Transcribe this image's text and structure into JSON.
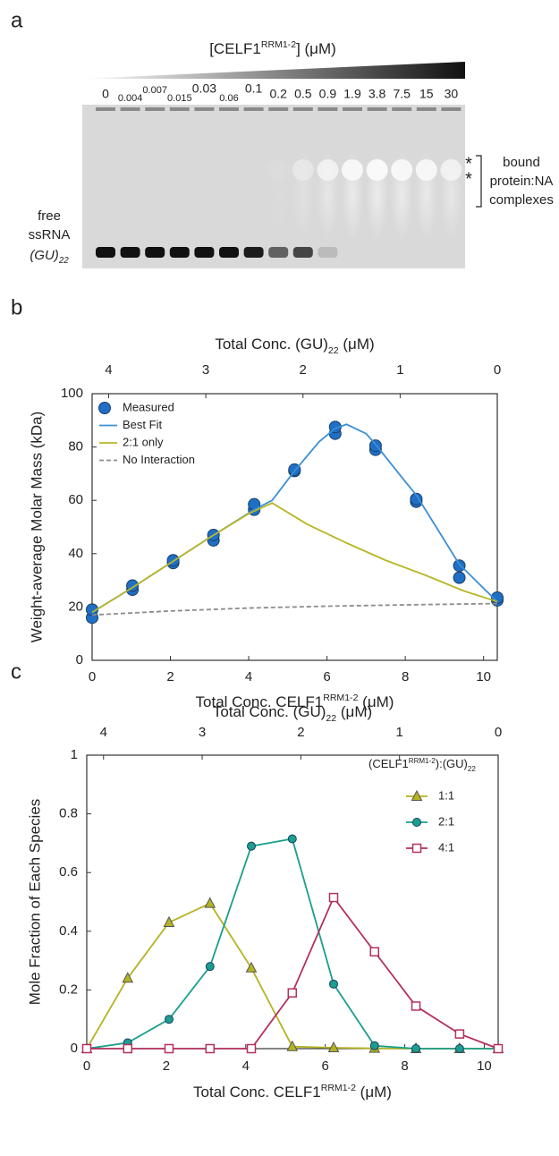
{
  "gel": {
    "panel": "a",
    "title": [
      "[CELF1",
      "RRM1-2",
      "] (μM)"
    ],
    "concentrations": [
      "0",
      "0.004",
      "0.007",
      "0.015",
      "0.03",
      "0.06",
      "0.1",
      "0.2",
      "0.5",
      "0.9",
      "1.9",
      "3.8",
      "7.5",
      "15",
      "30"
    ],
    "free_label": [
      "free",
      "ssRNA",
      "(GU)",
      "22"
    ],
    "band_marks": [
      "*",
      "*"
    ],
    "bound_label": [
      "bound",
      "protein:NA",
      "complexes"
    ]
  },
  "chart_data": [
    {
      "panel": "b",
      "type": "line",
      "x_label": [
        "Total Conc. CELF1",
        "RRM1-2",
        " (μM)"
      ],
      "x2_label": [
        "Total Conc. (GU)",
        "22",
        " (μM)"
      ],
      "y_label": "Weight-average Molar Mass (kDa)",
      "xlim": [
        0,
        10.35
      ],
      "xticks": [
        0,
        2,
        4,
        6,
        8,
        10
      ],
      "x2lim": [
        4.17,
        0
      ],
      "x2ticks": [
        4,
        3,
        2,
        1,
        0
      ],
      "ylim": [
        0,
        100
      ],
      "yticks": [
        0,
        20,
        40,
        60,
        80,
        100
      ],
      "legend": "upper left",
      "series": [
        {
          "name": "Measured",
          "mode": "markers",
          "marker": "circle",
          "color": "#1f6fc5",
          "x": [
            0,
            0,
            1.03,
            1.03,
            2.07,
            2.07,
            3.1,
            3.1,
            4.14,
            4.14,
            5.17,
            5.17,
            6.21,
            6.21,
            7.24,
            7.24,
            8.28,
            8.28,
            9.38,
            9.38,
            10.35,
            10.35
          ],
          "values": [
            16,
            19,
            26.5,
            28,
            36.5,
            37.5,
            45,
            47,
            56.5,
            58.5,
            71,
            71.5,
            85,
            87.5,
            79,
            80.5,
            59.5,
            60.5,
            31,
            35.5,
            22.5,
            23.5
          ]
        },
        {
          "name": "Best Fit",
          "mode": "lines",
          "color": "#3a8fd6",
          "x": [
            0,
            1,
            2,
            3,
            4.14,
            4.6,
            5.17,
            5.8,
            6.21,
            6.5,
            7,
            7.24,
            8,
            8.28,
            9,
            9.38,
            10,
            10.35
          ],
          "values": [
            18,
            27,
            36.5,
            46,
            56.5,
            60,
            71,
            82,
            87,
            88.5,
            85,
            81,
            67,
            62,
            45,
            36,
            27,
            22
          ]
        },
        {
          "name": "2:1 only",
          "mode": "lines",
          "color": "#b8b624",
          "x": [
            0,
            1,
            2,
            3,
            4,
            4.6,
            5.5,
            6.5,
            7.5,
            8.5,
            9.5,
            10.35
          ],
          "values": [
            18,
            27,
            36.5,
            46,
            55,
            59,
            51,
            44,
            37.5,
            32,
            26,
            22
          ]
        },
        {
          "name": "No Interaction",
          "mode": "lines",
          "dash": true,
          "color": "#8c8c8c",
          "x": [
            0,
            2,
            4,
            6,
            8,
            10.35
          ],
          "values": [
            17,
            18.5,
            19.6,
            20.3,
            20.8,
            21.3
          ]
        }
      ]
    },
    {
      "panel": "c",
      "type": "line",
      "x_label": [
        "Total Conc. CELF1",
        "RRM1-2",
        " (μM)"
      ],
      "x2_label": [
        "Total Conc. (GU)",
        "22",
        " (μM)"
      ],
      "y_label": "Mole Fraction of Each Species",
      "xlim": [
        0,
        10.35
      ],
      "xticks": [
        0,
        2,
        4,
        6,
        8,
        10
      ],
      "x2lim": [
        4.17,
        0
      ],
      "x2ticks": [
        4,
        3,
        2,
        1,
        0
      ],
      "ylim": [
        0,
        1
      ],
      "yticks": [
        0,
        0.2,
        0.4,
        0.6,
        0.8,
        1
      ],
      "legend": "upper right",
      "legend_title": [
        "(CELF1",
        "RRM1-2",
        "):(GU)",
        "22"
      ],
      "series": [
        {
          "name": "1:1",
          "mode": "lines+markers",
          "marker": "triangle",
          "color": "#b5b322",
          "x": [
            0,
            1.03,
            2.07,
            3.1,
            4.14,
            5.17,
            6.21,
            7.24,
            8.28,
            9.38,
            10.35
          ],
          "values": [
            0,
            0.24,
            0.43,
            0.495,
            0.275,
            0.007,
            0.003,
            0.001,
            0,
            0,
            0
          ]
        },
        {
          "name": "2:1",
          "mode": "lines+markers",
          "marker": "circle",
          "color": "#1b9e8c",
          "x": [
            0,
            1.03,
            2.07,
            3.1,
            4.14,
            5.17,
            6.21,
            7.24,
            8.28,
            9.38,
            10.35
          ],
          "values": [
            0,
            0.02,
            0.1,
            0.28,
            0.69,
            0.715,
            0.22,
            0.01,
            0,
            0,
            0
          ]
        },
        {
          "name": "4:1",
          "mode": "lines+markers",
          "marker": "square-open",
          "color": "#b3305f",
          "x": [
            0,
            1.03,
            2.07,
            3.1,
            4.14,
            5.17,
            6.21,
            7.24,
            8.28,
            9.38,
            10.35
          ],
          "values": [
            0,
            0,
            0,
            0,
            0,
            0.19,
            0.515,
            0.33,
            0.145,
            0.05,
            0
          ]
        }
      ]
    }
  ]
}
